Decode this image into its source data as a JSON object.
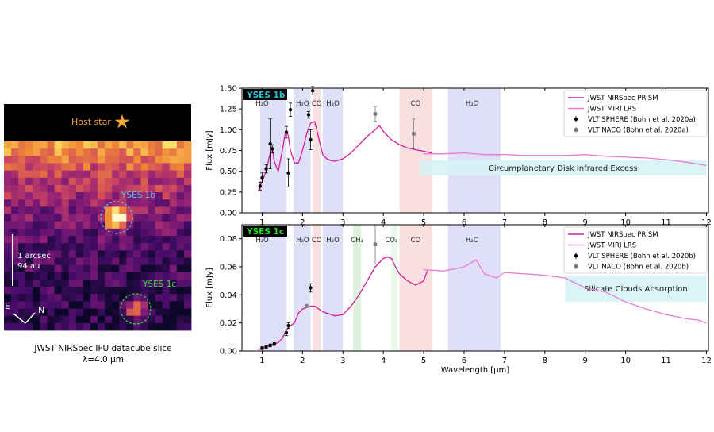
{
  "image_panel": {
    "host_label": "Host star",
    "label_b": "YSES 1b",
    "label_c": "YSES 1c",
    "scale_arcsec": "1 arcsec",
    "scale_au": "94 au",
    "compass_e": "E",
    "compass_n": "N",
    "caption_line1": "JWST NIRSpec IFU datacube slice",
    "caption_line2": "λ=4.0 µm",
    "colors": {
      "label_b": "#5bc6e8",
      "label_c": "#3fe03f",
      "host": "#f5a43a"
    }
  },
  "chart_data": [
    {
      "type": "line",
      "tag": "YSES 1b",
      "tag_color": "#27c4d8",
      "ylabel": "Flux [mJy]",
      "xlabel": "",
      "xlim": [
        0.5,
        12.05
      ],
      "ylim": [
        0,
        1.5
      ],
      "xticks": [
        1,
        2,
        3,
        4,
        5,
        6,
        7,
        8,
        9,
        10,
        11,
        12
      ],
      "yticks": [
        "0.00",
        "0.25",
        "0.50",
        "0.75",
        "1.00",
        "1.25",
        "1.50"
      ],
      "bands": [
        {
          "x0": 0.95,
          "x1": 1.6,
          "color": "#d9d9f7",
          "label": "H₂O",
          "lx": 1.0
        },
        {
          "x0": 1.78,
          "x1": 2.2,
          "color": "#d9d9f7",
          "label": "H₂O",
          "lx": 2.0
        },
        {
          "x0": 2.25,
          "x1": 2.45,
          "color": "#f7dada",
          "label": "CO",
          "lx": 2.35
        },
        {
          "x0": 2.5,
          "x1": 3.0,
          "color": "#d9d9f7",
          "label": "H₂O",
          "lx": 2.75
        },
        {
          "x0": 4.4,
          "x1": 5.2,
          "color": "#f7dada",
          "label": "CO",
          "lx": 4.8
        },
        {
          "x0": 5.6,
          "x1": 6.9,
          "color": "#d9d9f7",
          "label": "H₂O",
          "lx": 6.2
        }
      ],
      "annotation": {
        "text": "Circumplanetary Disk Infrared Excess",
        "x0": 4.9,
        "x1": 12.0,
        "y0": 0.45,
        "y1": 0.63,
        "color": "#d6f3f6"
      },
      "series": [
        {
          "name": "JWST NIRSpec PRISM",
          "color": "#d81b9c",
          "x": [
            0.9,
            1.0,
            1.1,
            1.2,
            1.25,
            1.3,
            1.4,
            1.5,
            1.55,
            1.6,
            1.65,
            1.7,
            1.8,
            1.9,
            2.0,
            2.1,
            2.2,
            2.3,
            2.35,
            2.4,
            2.5,
            2.6,
            2.7,
            2.8,
            3.0,
            3.2,
            3.4,
            3.6,
            3.8,
            3.9,
            4.0,
            4.2,
            4.4,
            4.6,
            4.8,
            5.0,
            5.2
          ],
          "y": [
            0.26,
            0.38,
            0.5,
            0.72,
            0.78,
            0.62,
            0.5,
            0.75,
            0.9,
            1.0,
            0.92,
            0.75,
            0.6,
            0.6,
            0.75,
            0.95,
            1.08,
            1.1,
            1.0,
            0.9,
            0.7,
            0.65,
            0.63,
            0.62,
            0.65,
            0.72,
            0.82,
            0.92,
            1.0,
            1.05,
            0.98,
            0.88,
            0.82,
            0.78,
            0.76,
            0.74,
            0.72
          ]
        },
        {
          "name": "JWST MIRI LRS",
          "color": "#e87bd4",
          "x": [
            5.0,
            5.5,
            6.0,
            6.5,
            7.0,
            7.5,
            8.0,
            8.5,
            9.0,
            9.5,
            10.0,
            10.5,
            11.0,
            11.5,
            12.0
          ],
          "y": [
            0.71,
            0.71,
            0.72,
            0.7,
            0.7,
            0.69,
            0.69,
            0.69,
            0.7,
            0.68,
            0.67,
            0.66,
            0.64,
            0.61,
            0.57
          ]
        }
      ],
      "points": [
        {
          "name": "VLT SPHERE (Bohn et al. 2020a)",
          "marker": "circle",
          "color": "#000000",
          "x": [
            0.95,
            1.0,
            1.1,
            1.2,
            1.25,
            1.6,
            1.65,
            1.7,
            2.15,
            2.2,
            2.25
          ],
          "y": [
            0.32,
            0.42,
            0.53,
            0.83,
            0.77,
            0.97,
            0.48,
            1.24,
            1.18,
            0.88,
            1.47
          ],
          "err": [
            0.05,
            0.06,
            0.05,
            0.3,
            0.05,
            0.07,
            0.17,
            0.08,
            0.04,
            0.12,
            0.05
          ]
        },
        {
          "name": "VLT NACO (Bohn et al. 2020a)",
          "marker": "square",
          "color": "#777777",
          "x": [
            3.8,
            4.75
          ],
          "y": [
            1.19,
            0.95
          ],
          "err": [
            0.09,
            0.18
          ]
        }
      ]
    },
    {
      "type": "line",
      "tag": "YSES 1c",
      "tag_color": "#2ed82e",
      "ylabel": "Flux [mJy]",
      "xlabel": "Wavelength [µm]",
      "xlim": [
        0.5,
        12.05
      ],
      "ylim": [
        0,
        0.09
      ],
      "xticks": [
        1,
        2,
        3,
        4,
        5,
        6,
        7,
        8,
        9,
        10,
        11,
        12
      ],
      "yticks": [
        "0.00",
        "0.02",
        "0.04",
        "0.06",
        "0.08"
      ],
      "bands": [
        {
          "x0": 0.95,
          "x1": 1.6,
          "color": "#d9d9f7",
          "label": "H₂O",
          "lx": 1.0
        },
        {
          "x0": 1.78,
          "x1": 2.2,
          "color": "#d9d9f7",
          "label": "H₂O",
          "lx": 2.0
        },
        {
          "x0": 2.25,
          "x1": 2.45,
          "color": "#f7dada",
          "label": "CO",
          "lx": 2.35
        },
        {
          "x0": 2.5,
          "x1": 3.0,
          "color": "#d9d9f7",
          "label": "H₂O",
          "lx": 2.75
        },
        {
          "x0": 3.25,
          "x1": 3.45,
          "color": "#d8f0d8",
          "label": "CH₄",
          "lx": 3.35
        },
        {
          "x0": 4.2,
          "x1": 4.35,
          "color": "#e9f7e9",
          "label": "CO₂",
          "lx": 4.2
        },
        {
          "x0": 4.4,
          "x1": 5.2,
          "color": "#f7dada",
          "label": "CO",
          "lx": 4.8
        },
        {
          "x0": 5.6,
          "x1": 6.9,
          "color": "#d9d9f7",
          "label": "H₂O",
          "lx": 6.2
        }
      ],
      "annotation": {
        "text": "Silicate Clouds Absorption",
        "x0": 8.5,
        "x1": 12.0,
        "y0": 0.035,
        "y1": 0.054,
        "color": "#d6f3f6"
      },
      "series": [
        {
          "name": "JWST NIRSpec PRISM",
          "color": "#d81b9c",
          "x": [
            0.9,
            1.0,
            1.1,
            1.2,
            1.3,
            1.4,
            1.5,
            1.6,
            1.7,
            1.8,
            1.9,
            2.0,
            2.1,
            2.2,
            2.3,
            2.4,
            2.5,
            2.6,
            2.8,
            3.0,
            3.2,
            3.4,
            3.6,
            3.8,
            4.0,
            4.1,
            4.2,
            4.3,
            4.4,
            4.6,
            4.8,
            5.0,
            5.1
          ],
          "y": [
            0.001,
            0.002,
            0.003,
            0.004,
            0.005,
            0.006,
            0.009,
            0.015,
            0.018,
            0.02,
            0.027,
            0.03,
            0.031,
            0.032,
            0.032,
            0.03,
            0.028,
            0.027,
            0.025,
            0.026,
            0.032,
            0.04,
            0.05,
            0.06,
            0.066,
            0.067,
            0.066,
            0.06,
            0.055,
            0.05,
            0.047,
            0.05,
            0.058
          ]
        },
        {
          "name": "JWST MIRI LRS",
          "color": "#e87bd4",
          "x": [
            5.0,
            5.5,
            6.0,
            6.3,
            6.5,
            6.8,
            7.0,
            7.5,
            8.0,
            8.5,
            9.0,
            9.5,
            10.0,
            10.5,
            11.0,
            11.5,
            11.8,
            12.0
          ],
          "y": [
            0.058,
            0.057,
            0.06,
            0.065,
            0.055,
            0.052,
            0.056,
            0.055,
            0.054,
            0.052,
            0.045,
            0.042,
            0.035,
            0.03,
            0.026,
            0.023,
            0.022,
            0.02
          ]
        }
      ],
      "points": [
        {
          "name": "VLT SPHERE (Bohn et al. 2020b)",
          "marker": "circle",
          "color": "#000000",
          "x": [
            1.0,
            1.1,
            1.2,
            1.3,
            1.6,
            1.65,
            2.2
          ],
          "y": [
            0.002,
            0.003,
            0.004,
            0.005,
            0.013,
            0.018,
            0.045
          ],
          "err": [
            0.001,
            0.001,
            0.001,
            0.001,
            0.002,
            0.002,
            0.003
          ]
        },
        {
          "name": "VLT NACO (Bohn et al. 2020b)",
          "marker": "square",
          "color": "#777777",
          "x": [
            2.1,
            3.8
          ],
          "y": [
            0.032,
            0.076
          ],
          "err": [
            0.001,
            0.014
          ]
        }
      ]
    }
  ]
}
